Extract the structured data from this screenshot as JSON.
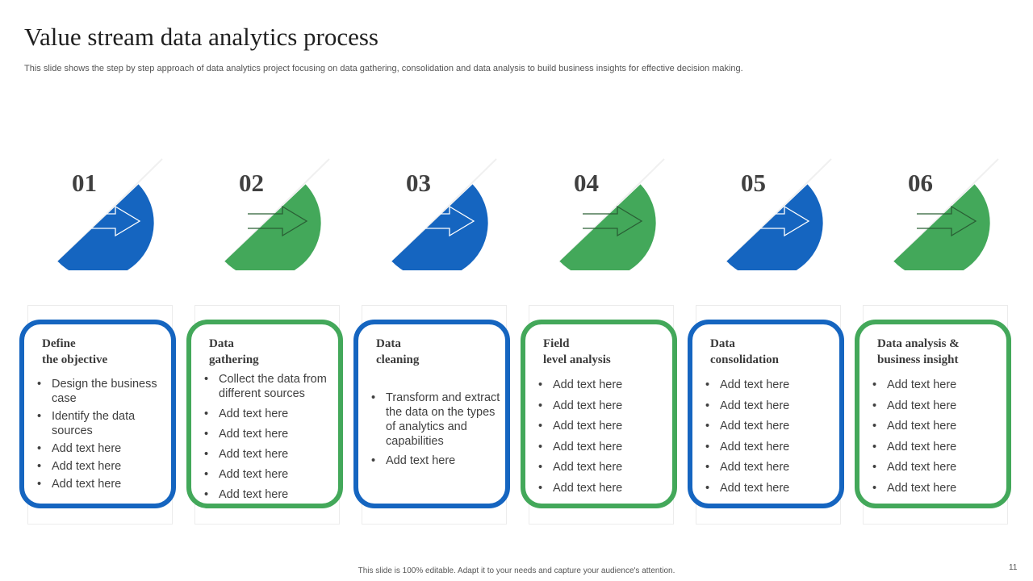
{
  "title": "Value stream data analytics process",
  "subtitle": "This slide shows the step by step approach of data analytics project focusing on data gathering, consolidation and data analysis to build business insights for effective decision making.",
  "footer": "This slide is 100% editable. Adapt it to your needs and capture your audience's attention.",
  "page_number": "11",
  "colors": {
    "blue": "#1565c0",
    "green": "#43a85a"
  },
  "icons": {
    "step": "arrow-right-icon"
  },
  "steps": [
    {
      "number": "01",
      "color": "blue",
      "title_line1": "Define",
      "title_line2": "the objective",
      "bullets": [
        "Design the business case",
        "Identify the data sources",
        "Add text here",
        "Add text here",
        "Add text here"
      ]
    },
    {
      "number": "02",
      "color": "green",
      "title_line1": "Data",
      "title_line2": "gathering",
      "bullets": [
        "Collect the data from different sources",
        "Add text here",
        "Add text here",
        "Add text here",
        "Add text here",
        "Add text here"
      ]
    },
    {
      "number": "03",
      "color": "blue",
      "title_line1": "Data",
      "title_line2": "cleaning",
      "bullets": [
        "Transform and extract the data on the types of analytics and capabilities",
        "Add text here"
      ]
    },
    {
      "number": "04",
      "color": "green",
      "title_line1": "Field",
      "title_line2": "level analysis",
      "bullets": [
        "Add text here",
        "Add text here",
        "Add text here",
        "Add text here",
        "Add text here",
        "Add text here"
      ]
    },
    {
      "number": "05",
      "color": "blue",
      "title_line1": "Data",
      "title_line2": "consolidation",
      "bullets": [
        "Add text here",
        "Add text here",
        "Add text here",
        "Add text here",
        "Add text here",
        "Add text here"
      ]
    },
    {
      "number": "06",
      "color": "green",
      "title_line1": "Data analysis &",
      "title_line2": "business insight",
      "bullets": [
        "Add text here",
        "Add text here",
        "Add text here",
        "Add text here",
        "Add text here",
        "Add text here"
      ]
    }
  ]
}
